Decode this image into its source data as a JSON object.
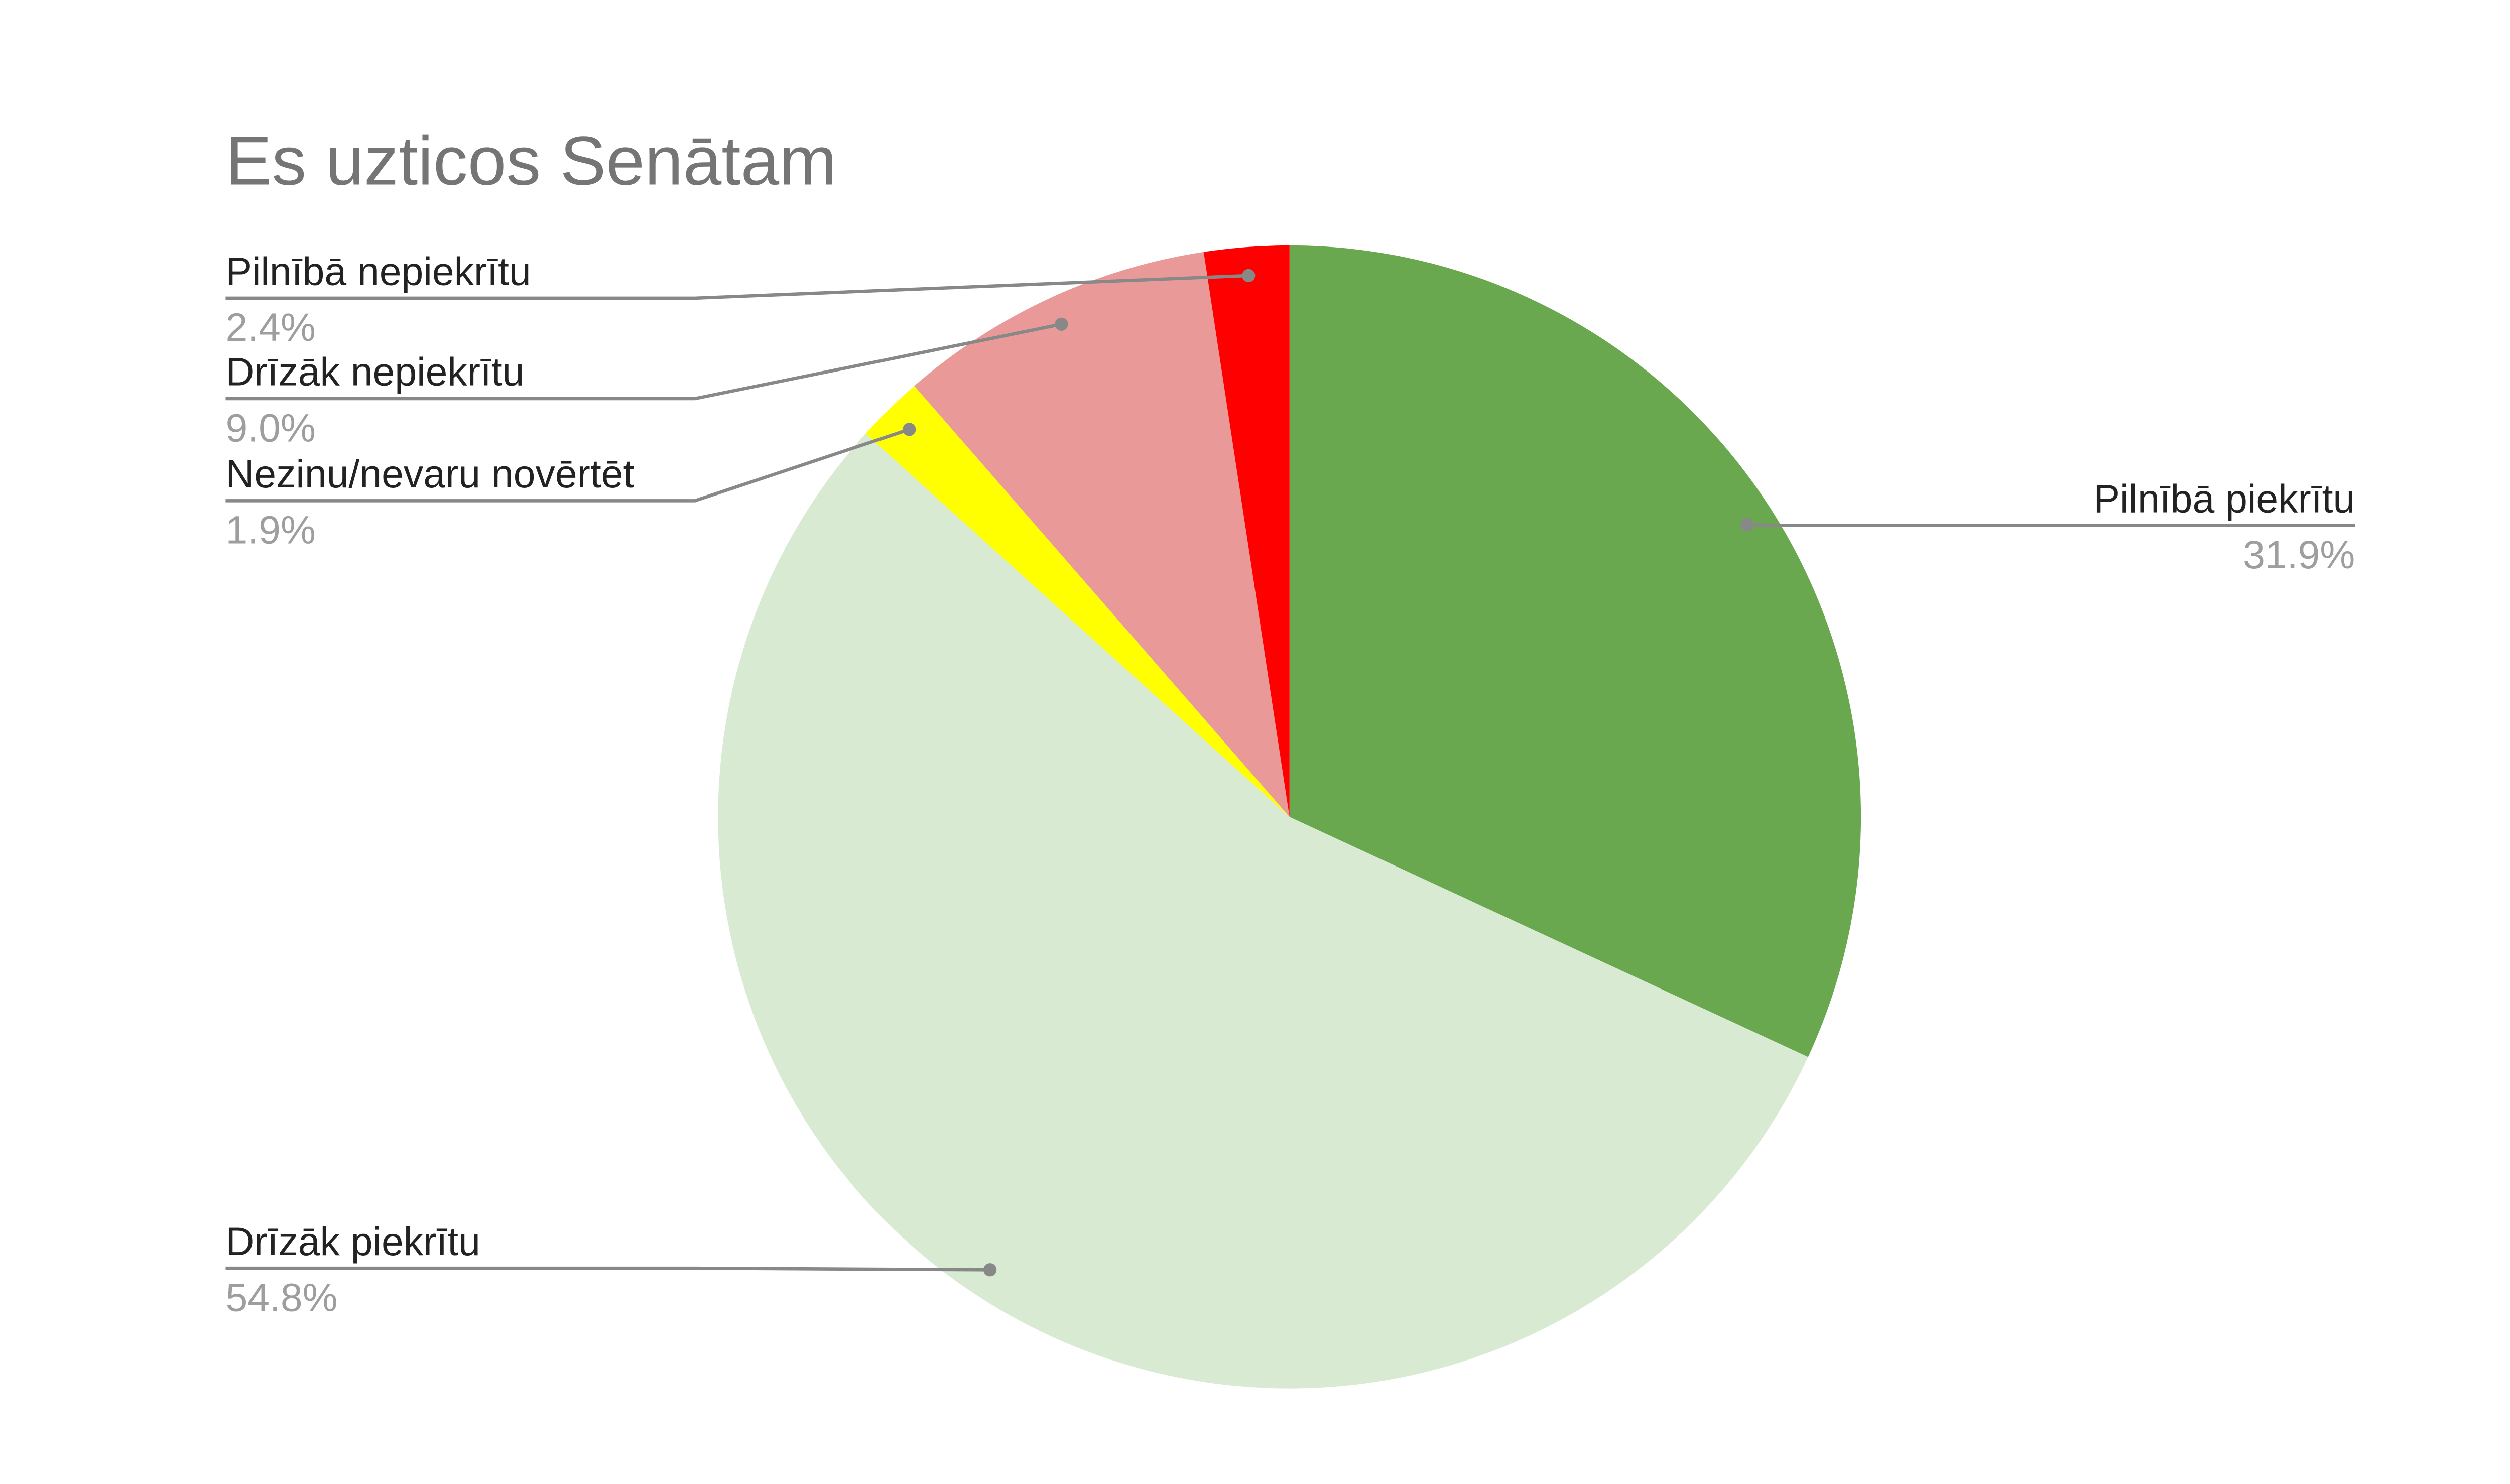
{
  "chart_data": {
    "type": "pie",
    "title": "Es uzticos Senātam",
    "categories": [
      "Pilnībā piekrītu",
      "Drīzāk piekrītu",
      "Nezinu/nevaru novērtēt",
      "Drīzāk nepiekrītu",
      "Pilnībā nepiekrītu"
    ],
    "values": [
      31.9,
      54.8,
      1.9,
      9.0,
      2.4
    ],
    "value_labels": [
      "31.9%",
      "54.8%",
      "1.9%",
      "9.0%",
      "2.4%"
    ],
    "colors": [
      "#6aa84f",
      "#d9ead3",
      "#ffff00",
      "#ea9999",
      "#ff0000"
    ]
  }
}
